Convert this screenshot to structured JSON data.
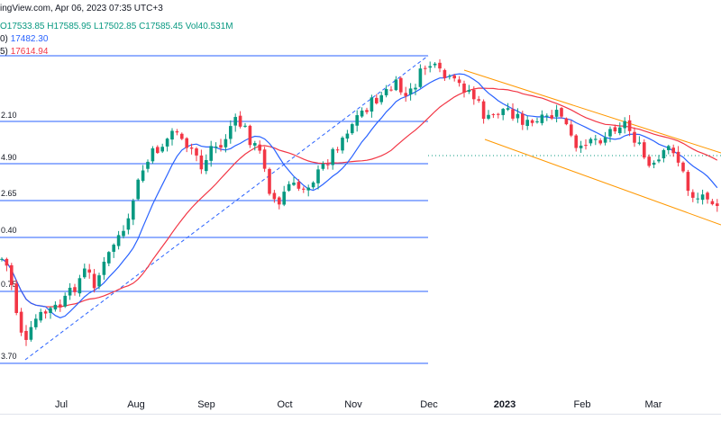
{
  "header": {
    "line1": "ingView.com, Apr 06, 2023 07:35 UTC+3",
    "ohlc_o": "O17533.85",
    "ohlc_h": "H17585.95",
    "ohlc_l": "L17502.85",
    "ohlc_c": "C17585.45",
    "volume": "Vol40.531M",
    "ma1_label": "0)",
    "ma1_value": "17482.30",
    "ma2_label": "5)",
    "ma2_value": "17614.94"
  },
  "colors": {
    "up": "#089981",
    "down": "#f23645",
    "ma_fast": "#2962ff",
    "ma_slow": "#f23645",
    "fib_lines": "#2962ff",
    "channel": "#ff9800",
    "trend_dashed": "#2962ff"
  },
  "chart_data": {
    "type": "candlestick",
    "x_axis_labels": [
      "Jul",
      "Aug",
      "Sep",
      "Oct",
      "Nov",
      "Dec",
      "2023",
      "Feb",
      "Mar"
    ],
    "fib_labels": [
      "2.10",
      "4.90",
      "2.65",
      "0.40",
      "0.75",
      "3.70"
    ],
    "series": [
      {
        "name": "MA fast",
        "color": "#2962ff"
      },
      {
        "name": "MA slow",
        "color": "#f23645"
      }
    ],
    "grid": false
  }
}
